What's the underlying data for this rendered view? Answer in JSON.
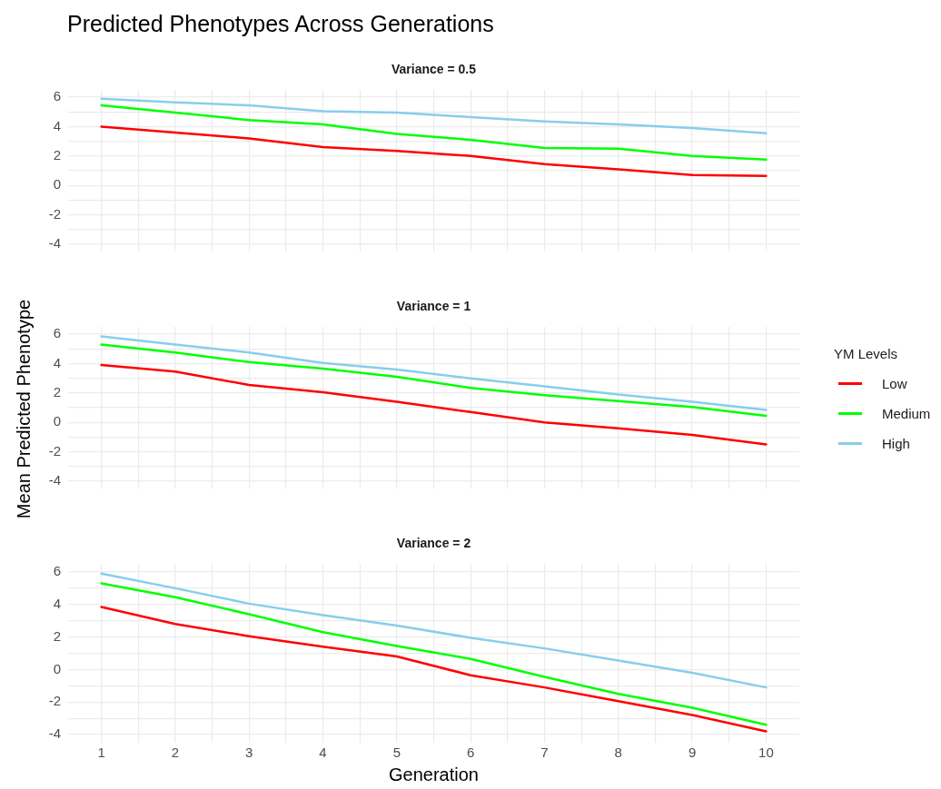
{
  "chart_data": [
    {
      "type": "line",
      "title": "Predicted Phenotypes Across Generations",
      "subtitle": "Variance = 0.5",
      "x": [
        1,
        2,
        3,
        4,
        5,
        6,
        7,
        8,
        9,
        10
      ],
      "xlim": [
        0.55,
        10.45
      ],
      "xticks": [
        1,
        {
          "value": 1.5,
          "label": null
        },
        2,
        {
          "value": 2.5,
          "label": null
        },
        3,
        {
          "value": 3.5,
          "label": null
        },
        4,
        {
          "value": 4.5,
          "label": null
        },
        5,
        {
          "value": 5.5,
          "label": null
        },
        6,
        {
          "value": 6.5,
          "label": null
        },
        7,
        {
          "value": 7.5,
          "label": null
        },
        8,
        {
          "value": 8.5,
          "label": null
        },
        9,
        {
          "value": 9.5,
          "label": null
        },
        10
      ],
      "ylim": [
        -4.5,
        6.5
      ],
      "yticks": [
        -4,
        {
          "value": -3,
          "label": null
        },
        -2,
        {
          "value": -1,
          "label": null
        },
        0,
        {
          "value": 1,
          "label": null
        },
        2,
        {
          "value": 3,
          "label": null
        },
        4,
        {
          "value": 5,
          "label": null
        },
        6
      ],
      "grid": true,
      "tick_labels": "y",
      "legend": false,
      "series": [
        {
          "color": "#ff0000",
          "values": [
            4.0,
            3.6,
            3.2,
            2.6,
            2.35,
            2.0,
            1.45,
            1.1,
            0.7,
            0.65
          ]
        },
        {
          "color": "#00ff00",
          "values": [
            5.45,
            4.95,
            4.45,
            4.15,
            3.5,
            3.1,
            2.55,
            2.5,
            2.0,
            1.75
          ]
        },
        {
          "color": "#87ceeb",
          "values": [
            5.9,
            5.65,
            5.45,
            5.05,
            4.95,
            4.65,
            4.35,
            4.15,
            3.9,
            3.55
          ]
        }
      ]
    },
    {
      "type": "line",
      "subtitle": "Variance = 1",
      "ylabel": "Mean Predicted Phenotype",
      "legend_title": "YM Levels",
      "x": [
        1,
        2,
        3,
        4,
        5,
        6,
        7,
        8,
        9,
        10
      ],
      "xlim": [
        0.55,
        10.45
      ],
      "xticks": [
        1,
        {
          "value": 1.5,
          "label": null
        },
        2,
        {
          "value": 2.5,
          "label": null
        },
        3,
        {
          "value": 3.5,
          "label": null
        },
        4,
        {
          "value": 4.5,
          "label": null
        },
        5,
        {
          "value": 5.5,
          "label": null
        },
        6,
        {
          "value": 6.5,
          "label": null
        },
        7,
        {
          "value": 7.5,
          "label": null
        },
        8,
        {
          "value": 8.5,
          "label": null
        },
        9,
        {
          "value": 9.5,
          "label": null
        },
        10
      ],
      "ylim": [
        -4.5,
        6.5
      ],
      "yticks": [
        -4,
        {
          "value": -3,
          "label": null
        },
        -2,
        {
          "value": -1,
          "label": null
        },
        0,
        {
          "value": 1,
          "label": null
        },
        2,
        {
          "value": 3,
          "label": null
        },
        4,
        {
          "value": 5,
          "label": null
        },
        6
      ],
      "grid": true,
      "tick_labels": "y",
      "legend": "right",
      "series": [
        {
          "name": "Low",
          "color": "#ff0000",
          "values": [
            3.9,
            3.45,
            2.55,
            2.05,
            1.4,
            0.7,
            0.0,
            -0.4,
            -0.85,
            -1.5
          ]
        },
        {
          "name": "Medium",
          "color": "#00ff00",
          "values": [
            5.3,
            4.75,
            4.1,
            3.65,
            3.1,
            2.35,
            1.85,
            1.45,
            1.05,
            0.45
          ]
        },
        {
          "name": "High",
          "color": "#87ceeb",
          "values": [
            5.85,
            5.3,
            4.75,
            4.05,
            3.6,
            3.0,
            2.45,
            1.9,
            1.4,
            0.85
          ]
        }
      ]
    },
    {
      "type": "line",
      "subtitle": "Variance = 2",
      "xlabel": "Generation",
      "x": [
        1,
        2,
        3,
        4,
        5,
        6,
        7,
        8,
        9,
        10
      ],
      "xlim": [
        0.55,
        10.45
      ],
      "xticks": [
        1,
        {
          "value": 1.5,
          "label": null
        },
        2,
        {
          "value": 2.5,
          "label": null
        },
        3,
        {
          "value": 3.5,
          "label": null
        },
        4,
        {
          "value": 4.5,
          "label": null
        },
        5,
        {
          "value": 5.5,
          "label": null
        },
        6,
        {
          "value": 6.5,
          "label": null
        },
        7,
        {
          "value": 7.5,
          "label": null
        },
        8,
        {
          "value": 8.5,
          "label": null
        },
        9,
        {
          "value": 9.5,
          "label": null
        },
        10
      ],
      "ylim": [
        -4.5,
        6.5
      ],
      "yticks": [
        -4,
        {
          "value": -3,
          "label": null
        },
        -2,
        {
          "value": -1,
          "label": null
        },
        0,
        {
          "value": 1,
          "label": null
        },
        2,
        {
          "value": 3,
          "label": null
        },
        4,
        {
          "value": 5,
          "label": null
        },
        6
      ],
      "grid": true,
      "legend": false,
      "series": [
        {
          "color": "#ff0000",
          "values": [
            3.85,
            2.8,
            2.05,
            1.4,
            0.8,
            -0.35,
            -1.1,
            -1.95,
            -2.8,
            -3.8
          ]
        },
        {
          "color": "#00ff00",
          "values": [
            5.3,
            4.45,
            3.4,
            2.3,
            1.45,
            0.65,
            -0.45,
            -1.5,
            -2.35,
            -3.4
          ]
        },
        {
          "color": "#87ceeb",
          "values": [
            5.9,
            5.0,
            4.05,
            3.35,
            2.7,
            1.95,
            1.3,
            0.55,
            -0.2,
            -1.1
          ]
        }
      ]
    }
  ]
}
